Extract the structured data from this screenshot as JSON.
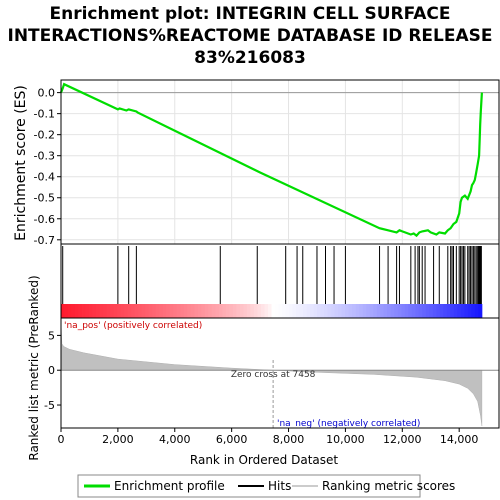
{
  "chart_data": {
    "type": "line",
    "title_lines": [
      "Enrichment plot: INTEGRIN CELL SURFACE",
      "INTERACTIONS%REACTOME DATABASE ID RELEASE",
      "83%216083"
    ],
    "es_panel": {
      "ylabel": "Enrichment score (ES)",
      "ylim": [
        -0.72,
        0.06
      ],
      "yticks": [
        0.0,
        -0.1,
        -0.2,
        -0.3,
        -0.4,
        -0.5,
        -0.6,
        -0.7
      ],
      "ytick_labels": [
        "0.0",
        "-0.1",
        "-0.2",
        "-0.3",
        "-0.4",
        "-0.5",
        "-0.6",
        "-0.7"
      ],
      "grid": true,
      "series": [
        {
          "name": "Enrichment profile",
          "color": "#00dd00",
          "x": [
            0,
            60,
            110,
            2000,
            2060,
            2300,
            2380,
            2650,
            2700,
            7000,
            11200,
            11500,
            11800,
            11900,
            12000,
            12300,
            12400,
            12500,
            12600,
            12700,
            12900,
            13000,
            13200,
            13300,
            13500,
            13600,
            13700,
            13800,
            13900,
            14000,
            14050,
            14100,
            14200,
            14300,
            14400,
            14450,
            14500,
            14550,
            14600,
            14650,
            14700,
            14720,
            14740,
            14760,
            14780,
            14800
          ],
          "y": [
            0.0,
            0.02,
            0.04,
            -0.08,
            -0.075,
            -0.085,
            -0.08,
            -0.09,
            -0.095,
            -0.38,
            -0.645,
            -0.655,
            -0.665,
            -0.655,
            -0.66,
            -0.675,
            -0.67,
            -0.68,
            -0.665,
            -0.66,
            -0.655,
            -0.665,
            -0.675,
            -0.665,
            -0.67,
            -0.655,
            -0.645,
            -0.625,
            -0.615,
            -0.575,
            -0.52,
            -0.5,
            -0.49,
            -0.505,
            -0.47,
            -0.44,
            -0.43,
            -0.415,
            -0.38,
            -0.34,
            -0.3,
            -0.22,
            -0.15,
            -0.09,
            -0.04,
            0.0
          ]
        }
      ]
    },
    "hits": {
      "name": "Hits",
      "positions": [
        60,
        2000,
        2380,
        2650,
        5600,
        6900,
        7900,
        8300,
        8500,
        9000,
        9300,
        9600,
        10000,
        11200,
        11500,
        11800,
        11900,
        12300,
        12450,
        12550,
        12600,
        12700,
        12800,
        13100,
        13300,
        13600,
        13700,
        13750,
        13800,
        13900,
        14000,
        14050,
        14100,
        14150,
        14200,
        14300,
        14350,
        14400,
        14450,
        14500,
        14550,
        14600,
        14650,
        14680,
        14700,
        14720,
        14740,
        14760,
        14780
      ]
    },
    "ranked_metric": {
      "name": "Ranking metric scores",
      "ylabel": "Ranked list metric (PreRanked)",
      "ylim": [
        -8.3,
        7.5
      ],
      "yticks": [
        5,
        0,
        -5
      ],
      "ytick_labels": [
        "5",
        "0",
        "-5"
      ],
      "x": [
        0,
        30,
        100,
        300,
        800,
        2000,
        4000,
        6000,
        7458,
        9000,
        11000,
        12500,
        13500,
        14000,
        14300,
        14500,
        14650,
        14750,
        14800
      ],
      "y": [
        7.0,
        3.8,
        3.4,
        3.0,
        2.5,
        1.6,
        0.8,
        0.3,
        0.0,
        -0.3,
        -0.6,
        -1.0,
        -1.5,
        -2.0,
        -2.6,
        -3.4,
        -4.5,
        -6.5,
        -8.0
      ]
    },
    "xlabel": "Rank in Ordered Dataset",
    "xlim": [
      0,
      15400
    ],
    "xticks": [
      0,
      2000,
      4000,
      6000,
      8000,
      10000,
      12000,
      14000
    ],
    "xtick_labels": [
      "0",
      "2,000",
      "4,000",
      "6,000",
      "8,000",
      "10,000",
      "12,000",
      "14,000"
    ],
    "annotations": {
      "pos_label": "'na_pos' (positively correlated)",
      "neg_label": "'na_neg' (negatively correlated)",
      "zero_cross_label": "Zero cross at 7458",
      "zero_cross_x": 7458,
      "pos_color": "#cc0000",
      "neg_color": "#0000cc"
    },
    "legend": {
      "placement": "bottom",
      "entries": [
        "Enrichment profile",
        "Hits",
        "Ranking metric scores"
      ],
      "colors": [
        "#00dd00",
        "#000000",
        "#cccccc"
      ]
    }
  }
}
